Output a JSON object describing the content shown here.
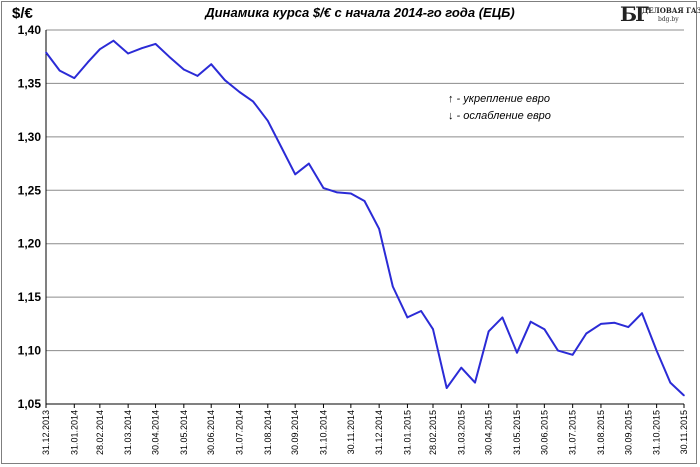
{
  "chart_data": {
    "type": "line",
    "title": "Динамика курса $/€ с начала 2014-го года (ЕЦБ)",
    "ylabel": "$/€",
    "ylim": [
      1.05,
      1.4
    ],
    "yticks": [
      "1,05",
      "1,10",
      "1,15",
      "1,20",
      "1,25",
      "1,30",
      "1,35",
      "1,40"
    ],
    "ytick_values": [
      1.05,
      1.1,
      1.15,
      1.2,
      1.25,
      1.3,
      1.35,
      1.4
    ],
    "xticks": [
      "31.12.2013",
      "31.01.2014",
      "28.02.2014",
      "31.03.2014",
      "30.04.2014",
      "31.05.2014",
      "30.06.2014",
      "31.07.2014",
      "31.08.2014",
      "30.09.2014",
      "31.10.2014",
      "30.11.2014",
      "31.12.2014",
      "31.01.2015",
      "28.02.2015",
      "31.03.2015",
      "30.04.2015",
      "31.05.2015",
      "30.06.2015",
      "31.07.2015",
      "31.08.2015",
      "30.09.2015",
      "31.10.2015",
      "30.11.2015"
    ],
    "grid": "horizontal",
    "line_color": "#2b2bd6",
    "annotations": [
      "↑ - укрепление евро",
      "↓ - ослабление евро"
    ],
    "series": [
      {
        "x": [
          "31.12.2013",
          "15.01.2014",
          "31.01.2014",
          "15.02.2014",
          "28.02.2014",
          "15.03.2014",
          "31.03.2014",
          "15.04.2014",
          "30.04.2014",
          "15.05.2014",
          "31.05.2014",
          "15.06.2014",
          "30.06.2014",
          "15.07.2014",
          "31.07.2014",
          "15.08.2014",
          "31.08.2014",
          "15.09.2014",
          "30.09.2014",
          "15.10.2014",
          "31.10.2014",
          "15.11.2014",
          "30.11.2014",
          "15.12.2014",
          "31.12.2014",
          "15.01.2015",
          "31.01.2015",
          "15.02.2015",
          "28.02.2015",
          "15.03.2015",
          "31.03.2015",
          "15.04.2015",
          "30.04.2015",
          "15.05.2015",
          "31.05.2015",
          "15.06.2015",
          "30.06.2015",
          "15.07.2015",
          "31.07.2015",
          "15.08.2015",
          "31.08.2015",
          "15.09.2015",
          "30.09.2015",
          "15.10.2015",
          "31.10.2015",
          "15.11.2015",
          "30.11.2015"
        ],
        "values": [
          1.379,
          1.362,
          1.355,
          1.37,
          1.382,
          1.39,
          1.378,
          1.383,
          1.387,
          1.375,
          1.363,
          1.357,
          1.368,
          1.353,
          1.342,
          1.333,
          1.315,
          1.29,
          1.265,
          1.275,
          1.252,
          1.248,
          1.247,
          1.24,
          1.214,
          1.16,
          1.131,
          1.137,
          1.12,
          1.065,
          1.084,
          1.07,
          1.118,
          1.131,
          1.098,
          1.127,
          1.12,
          1.1,
          1.096,
          1.116,
          1.125,
          1.126,
          1.122,
          1.135,
          1.1,
          1.07,
          1.058
        ]
      }
    ]
  }
}
